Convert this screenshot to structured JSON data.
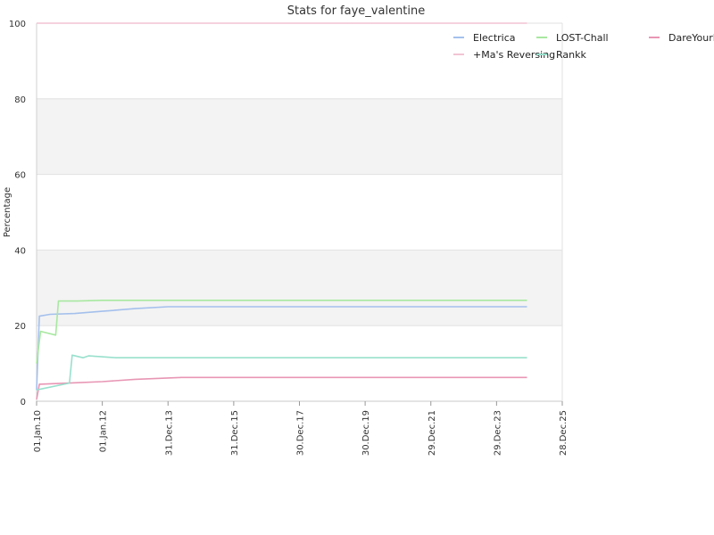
{
  "chart_data": {
    "type": "line",
    "title": "Stats for faye_valentine",
    "xlabel": "",
    "ylabel": "Percentage",
    "ylim": [
      0,
      100
    ],
    "xlim": [
      "2010-01-01",
      "2025-12-28"
    ],
    "y_ticks": [
      0,
      20,
      40,
      60,
      80,
      100
    ],
    "x_ticks": [
      {
        "date": "2010-01-01",
        "label": "01.Jan.10"
      },
      {
        "date": "2012-01-01",
        "label": "01.Jan.12"
      },
      {
        "date": "2013-12-31",
        "label": "31.Dec.13"
      },
      {
        "date": "2015-12-31",
        "label": "31.Dec.15"
      },
      {
        "date": "2017-12-30",
        "label": "30.Dec.17"
      },
      {
        "date": "2019-12-30",
        "label": "30.Dec.19"
      },
      {
        "date": "2021-12-29",
        "label": "29.Dec.21"
      },
      {
        "date": "2023-12-29",
        "label": "29.Dec.23"
      },
      {
        "date": "2025-12-28",
        "label": "28.Dec.25"
      }
    ],
    "grid": "horizontal alternating bands",
    "legend_position": "top-right",
    "series": [
      {
        "name": "Electrica",
        "color": "#a4c0ec",
        "points": [
          {
            "x": "2010-01-01",
            "y": 3
          },
          {
            "x": "2010-02-01",
            "y": 22.5
          },
          {
            "x": "2010-06-01",
            "y": 23
          },
          {
            "x": "2011-03-01",
            "y": 23.2
          },
          {
            "x": "2012-01-01",
            "y": 23.8
          },
          {
            "x": "2013-01-01",
            "y": 24.5
          },
          {
            "x": "2014-01-01",
            "y": 25
          },
          {
            "x": "2024-12-01",
            "y": 25
          }
        ]
      },
      {
        "name": "LOST-Chall",
        "color": "#a8e8a0",
        "points": [
          {
            "x": "2010-01-01",
            "y": 10
          },
          {
            "x": "2010-02-15",
            "y": 18.5
          },
          {
            "x": "2010-08-01",
            "y": 17.5
          },
          {
            "x": "2010-09-01",
            "y": 26.5
          },
          {
            "x": "2011-04-01",
            "y": 26.5
          },
          {
            "x": "2012-01-01",
            "y": 26.7
          },
          {
            "x": "2024-12-01",
            "y": 26.7
          }
        ]
      },
      {
        "name": "DareYourMind",
        "color": "#e896b4",
        "points": [
          {
            "x": "2010-01-01",
            "y": 0.5
          },
          {
            "x": "2010-02-01",
            "y": 4.5
          },
          {
            "x": "2011-01-01",
            "y": 4.8
          },
          {
            "x": "2012-01-01",
            "y": 5.2
          },
          {
            "x": "2013-01-01",
            "y": 5.8
          },
          {
            "x": "2014-06-01",
            "y": 6.3
          },
          {
            "x": "2024-12-01",
            "y": 6.3
          }
        ]
      },
      {
        "name": "+Ma's Reversing",
        "color": "#f2c4d4",
        "points": [
          {
            "x": "2010-01-01",
            "y": 100
          },
          {
            "x": "2024-12-01",
            "y": 100
          }
        ]
      },
      {
        "name": "Rankk",
        "color": "#98e0cc",
        "points": [
          {
            "x": "2010-01-01",
            "y": 3
          },
          {
            "x": "2011-01-01",
            "y": 4.8
          },
          {
            "x": "2011-02-01",
            "y": 12.2
          },
          {
            "x": "2011-06-01",
            "y": 11.5
          },
          {
            "x": "2011-08-01",
            "y": 12
          },
          {
            "x": "2012-06-01",
            "y": 11.5
          },
          {
            "x": "2024-12-01",
            "y": 11.5
          }
        ]
      }
    ]
  }
}
